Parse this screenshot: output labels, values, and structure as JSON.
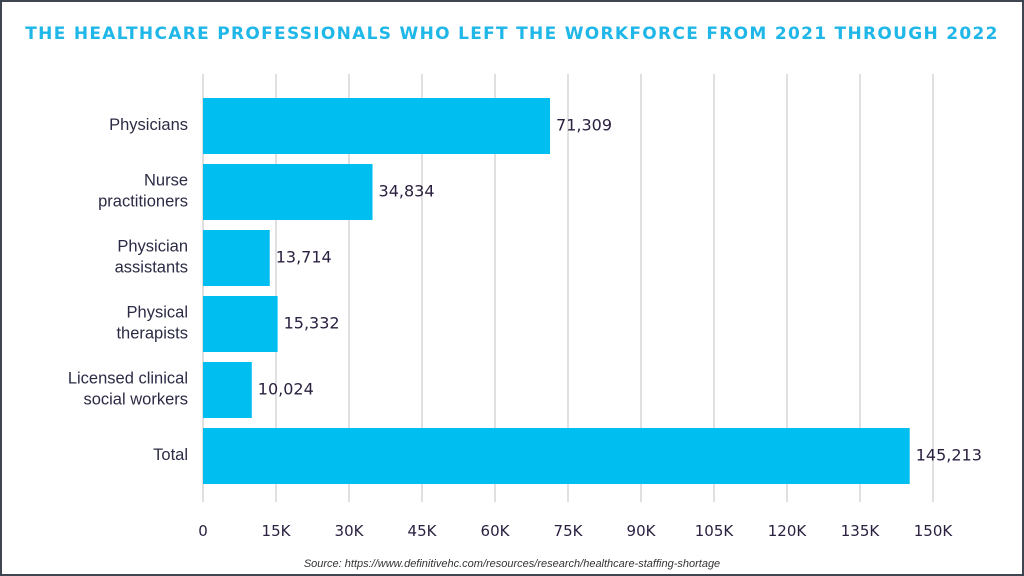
{
  "chart_data": {
    "type": "bar",
    "orientation": "horizontal",
    "title": "THE HEALTHCARE PROFESSIONALS WHO LEFT THE WORKFORCE FROM 2021 THROUGH 2022",
    "categories": [
      [
        "Physicians"
      ],
      [
        "Nurse",
        "practitioners"
      ],
      [
        "Physician",
        "assistants"
      ],
      [
        "Physical",
        "therapists"
      ],
      [
        "Licensed clinical",
        "social workers"
      ],
      [
        "Total"
      ]
    ],
    "values": [
      71309,
      34834,
      13714,
      15332,
      10024,
      145213
    ],
    "value_labels": [
      "71,309",
      "34,834",
      "13,714",
      "15,332",
      "10,024",
      "145,213"
    ],
    "xlim": [
      0,
      150000
    ],
    "x_ticks": [
      0,
      15000,
      30000,
      45000,
      60000,
      75000,
      90000,
      105000,
      120000,
      135000,
      150000
    ],
    "x_tick_labels": [
      "0",
      "15K",
      "30K",
      "45K",
      "60K",
      "75K",
      "90K",
      "105K",
      "120K",
      "135K",
      "150K"
    ],
    "xlabel": "",
    "ylabel": "",
    "grid": "vertical",
    "legend": "none",
    "bar_color": "#00bff0",
    "title_color": "#1fb6e8"
  },
  "source": "Source: https://www.definitivehc.com/resources/research/healthcare-staffing-shortage"
}
